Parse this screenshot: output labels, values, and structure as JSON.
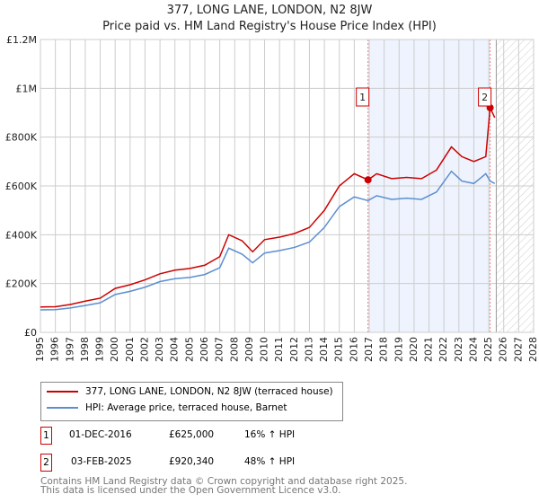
{
  "chart_data": {
    "type": "line",
    "title": "377, LONG LANE, LONDON, N2 8JW",
    "subtitle": "Price paid vs. HM Land Registry's House Price Index (HPI)",
    "xlim": [
      1995,
      2028
    ],
    "ylim": [
      0,
      1200000
    ],
    "yticks": [
      0,
      200000,
      400000,
      600000,
      800000,
      1000000,
      1200000
    ],
    "ytick_labels": [
      "£0",
      "£200K",
      "£400K",
      "£600K",
      "£800K",
      "£1M",
      "£1.2M"
    ],
    "xticks": [
      1995,
      1996,
      1997,
      1998,
      1999,
      2000,
      2001,
      2002,
      2003,
      2004,
      2005,
      2006,
      2007,
      2008,
      2009,
      2010,
      2011,
      2012,
      2013,
      2014,
      2015,
      2016,
      2017,
      2018,
      2019,
      2020,
      2021,
      2022,
      2023,
      2024,
      2025,
      2026,
      2027,
      2028
    ],
    "grid": true,
    "series": [
      {
        "name": "377, LONG LANE, LONDON, N2 8JW (terraced house)",
        "color": "#cc0000",
        "x": [
          1995,
          1996,
          1997,
          1998,
          1999,
          2000,
          2001,
          2002,
          2003,
          2004,
          2005,
          2006,
          2007,
          2007.6,
          2008.5,
          2009.2,
          2010,
          2011,
          2012,
          2013,
          2014,
          2015,
          2016,
          2016.92,
          2017.5,
          2018.5,
          2019.5,
          2020.5,
          2021.5,
          2022.5,
          2023.2,
          2024,
          2024.8,
          2025.09,
          2025.4
        ],
        "y": [
          104000,
          105000,
          114000,
          128000,
          140000,
          180000,
          195000,
          215000,
          240000,
          255000,
          262000,
          275000,
          310000,
          400000,
          375000,
          330000,
          380000,
          390000,
          405000,
          430000,
          500000,
          600000,
          650000,
          625000,
          650000,
          630000,
          635000,
          630000,
          665000,
          760000,
          720000,
          700000,
          720000,
          920340,
          880000
        ]
      },
      {
        "name": "HPI: Average price, terraced house, Barnet",
        "color": "#5b8fd0",
        "x": [
          1995,
          1996,
          1997,
          1998,
          1999,
          2000,
          2001,
          2002,
          2003,
          2004,
          2005,
          2006,
          2007,
          2007.6,
          2008.5,
          2009.2,
          2010,
          2011,
          2012,
          2013,
          2014,
          2015,
          2016,
          2016.92,
          2017.5,
          2018.5,
          2019.5,
          2020.5,
          2021.5,
          2022.5,
          2023.2,
          2024,
          2024.8,
          2025.09,
          2025.4
        ],
        "y": [
          92000,
          93000,
          100000,
          110000,
          121000,
          155000,
          168000,
          185000,
          208000,
          220000,
          225000,
          237000,
          265000,
          345000,
          320000,
          285000,
          325000,
          335000,
          348000,
          370000,
          430000,
          515000,
          555000,
          540000,
          560000,
          545000,
          550000,
          545000,
          575000,
          660000,
          620000,
          610000,
          650000,
          620000,
          610000
        ]
      }
    ],
    "annotations": [
      {
        "label": "1",
        "x": 2016.92,
        "y": 625000
      },
      {
        "label": "2",
        "x": 2025.09,
        "y": 920340
      }
    ],
    "forecast_start": 2025.5
  },
  "legend": [
    "377, LONG LANE, LONDON, N2 8JW (terraced house)",
    "HPI: Average price, terraced house, Barnet"
  ],
  "transactions": [
    {
      "n": "1",
      "date": "01-DEC-2016",
      "price": "£625,000",
      "hpi": "16% ↑ HPI"
    },
    {
      "n": "2",
      "date": "03-FEB-2025",
      "price": "£920,340",
      "hpi": "48% ↑ HPI"
    }
  ],
  "footer": [
    "Contains HM Land Registry data © Crown copyright and database right 2025.",
    "This data is licensed under the Open Government Licence v3.0."
  ]
}
